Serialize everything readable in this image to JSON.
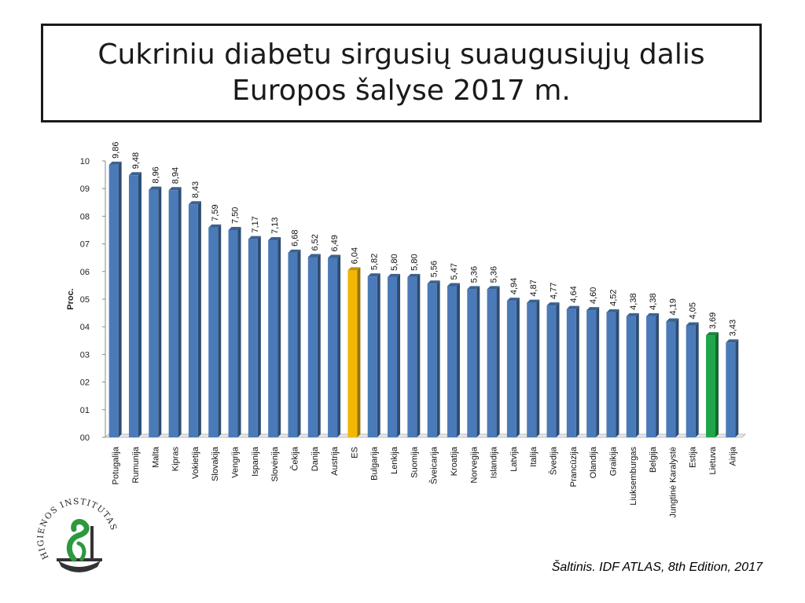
{
  "title": {
    "line1": "Cukriniu diabetu sirgusių suaugusiųjų dalis",
    "line2": "Europos šalyse 2017 m."
  },
  "chart_data": {
    "type": "bar",
    "ylabel": "Proc.",
    "ylim": [
      0,
      10
    ],
    "y_ticks": [
      "00",
      "01",
      "02",
      "03",
      "04",
      "05",
      "06",
      "07",
      "08",
      "09",
      "10"
    ],
    "grid": false,
    "categories": [
      "Potugalija",
      "Rumunija",
      "Malta",
      "Kipras",
      "Vokietija",
      "Slovakija",
      "Vengrija",
      "Ispanija",
      "Slovėnija",
      "Čekija",
      "Danija",
      "Austrija",
      "ES",
      "Bulgarija",
      "Lenkija",
      "Suomija",
      "Šveicarija",
      "Kroatija",
      "Norvegija",
      "Islandija",
      "Latvija",
      "Italija",
      "Švedija",
      "Prancūzija",
      "Olandija",
      "Graikija",
      "Liuksemburgas",
      "Belgija",
      "Jungtinė Karalystė",
      "Estija",
      "Lietuva",
      "Airija"
    ],
    "values": [
      9.86,
      9.48,
      8.96,
      8.94,
      8.43,
      7.59,
      7.5,
      7.17,
      7.13,
      6.68,
      6.52,
      6.49,
      6.04,
      5.82,
      5.8,
      5.8,
      5.56,
      5.47,
      5.36,
      5.36,
      4.94,
      4.87,
      4.77,
      4.64,
      4.6,
      4.52,
      4.38,
      4.38,
      4.19,
      4.05,
      3.69,
      3.43
    ],
    "value_labels": [
      "9,86",
      "9,48",
      "8,96",
      "8,94",
      "8,43",
      "7,59",
      "7,50",
      "7,17",
      "7,13",
      "6,68",
      "6,52",
      "6,49",
      "6,04",
      "5,82",
      "5,80",
      "5,80",
      "5,56",
      "5,47",
      "5,36",
      "5,36",
      "4,94",
      "4,87",
      "4,77",
      "4,64",
      "4,60",
      "4,52",
      "4,38",
      "4,38",
      "4,19",
      "4,05",
      "3,69",
      "3,43"
    ],
    "colors": {
      "default": "#4a7ab8",
      "highlight_es": "#f2b705",
      "highlight_lt": "#1fa64a"
    },
    "highlights": {
      "ES": "highlight_es",
      "Lietuva": "highlight_lt"
    }
  },
  "logo": {
    "text": "HIGIENOS INSTITUTAS",
    "icon": "serpent-bowl-icon"
  },
  "source": "Šaltinis. IDF ATLAS, 8th Edition, 2017"
}
